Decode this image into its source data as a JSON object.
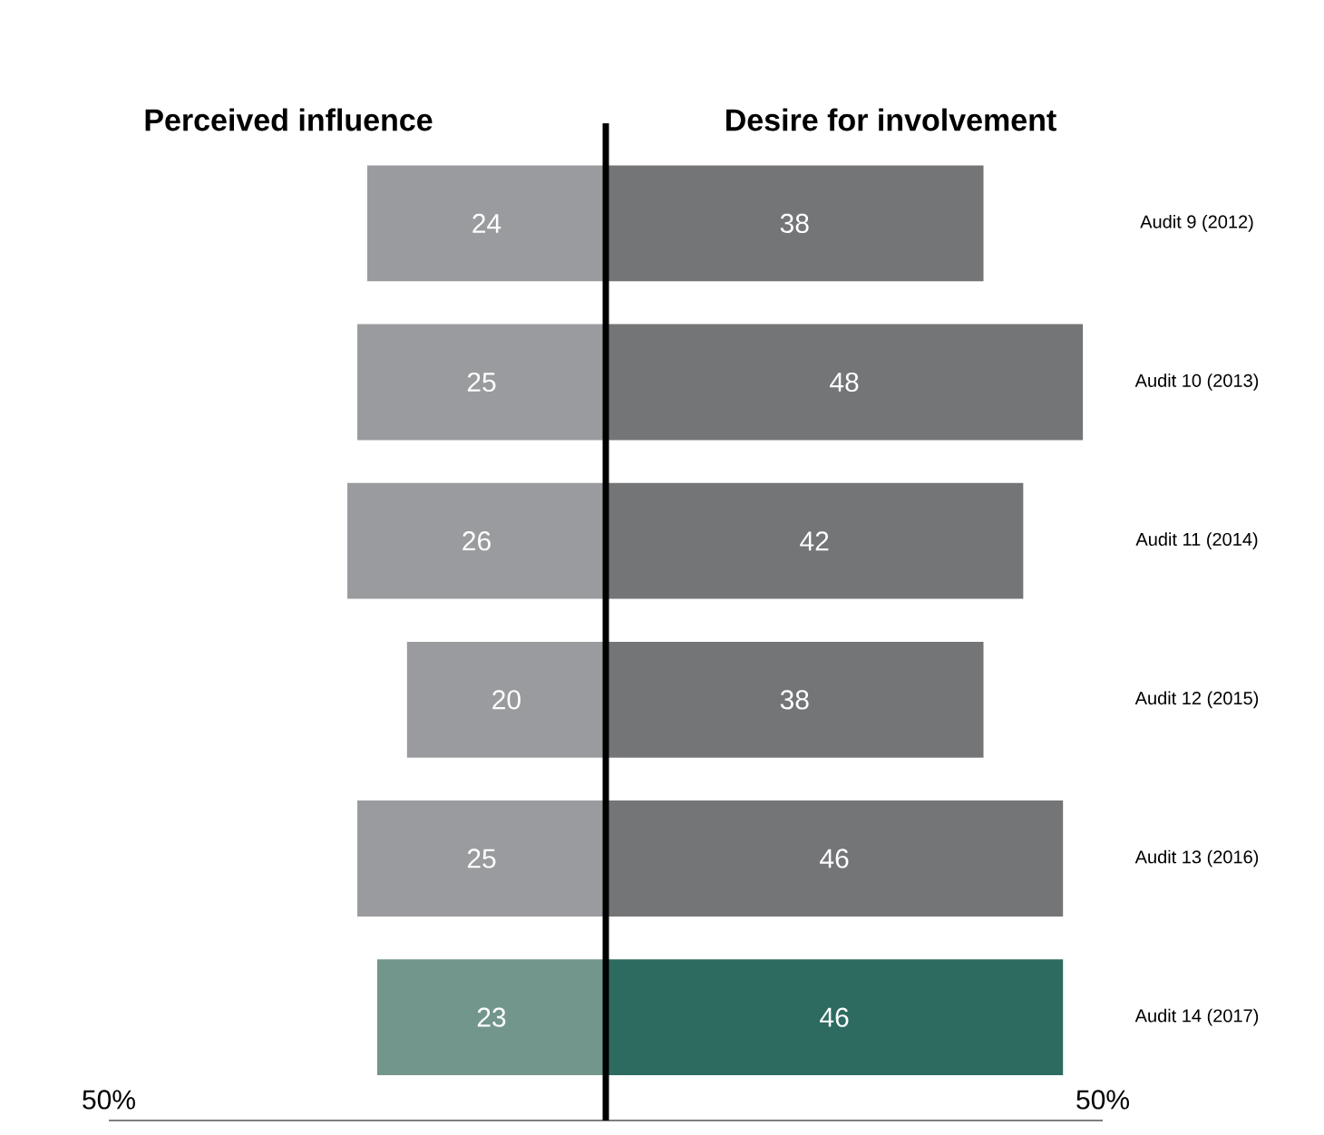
{
  "chart_data": {
    "type": "bar",
    "orientation": "horizontal",
    "data_labels": true,
    "categories": [
      "Audit 9 (2012)",
      "Audit 10 (2013)",
      "Audit 11 (2014)",
      "Audit 12 (2015)",
      "Audit 13 (2016)",
      "Audit 14 (2017)"
    ],
    "series": [
      {
        "name": "Perceived influence",
        "values": [
          24,
          25,
          26,
          20,
          25,
          23
        ],
        "base": [
          -24,
          -25,
          -26,
          -20,
          -25,
          -23
        ],
        "colors": [
          "#9a9b9e",
          "#9a9b9e",
          "#9a9b9e",
          "#9a9b9e",
          "#9a9b9e",
          "#72968c"
        ]
      },
      {
        "name": "Desire for involvement",
        "values": [
          38,
          48,
          42,
          38,
          46,
          46
        ],
        "colors": [
          "#747577",
          "#747577",
          "#747577",
          "#747577",
          "#747577",
          "#2d6b60"
        ]
      }
    ],
    "xlim": [
      -50,
      50
    ],
    "xticks": [
      {
        "value": -50,
        "label": "50%"
      },
      {
        "value": 50,
        "label": "50%"
      }
    ]
  }
}
